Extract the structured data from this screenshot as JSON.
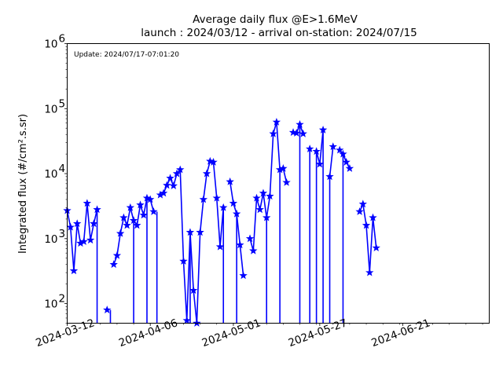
{
  "chart_data": {
    "type": "line",
    "title": "Average daily flux @E>1.6MeV",
    "subtitle": "launch : 2024/03/12 - arrival on-station: 2024/07/15",
    "annotation": "Update: 2024/07/17-07:01:20",
    "xlabel": "",
    "ylabel": "Integrated flux (#/cm².s.sr)",
    "y_scale": "log",
    "ylim": [
      50,
      1000000
    ],
    "xlim": [
      "2024-03-12",
      "2024-07-17"
    ],
    "x_tick_labels": [
      "2024-03-12",
      "2024-04-06",
      "2024-05-01",
      "2024-05-27",
      "2024-06-21"
    ],
    "y_tick_labels": [
      {
        "base": "10",
        "exp": "2",
        "value": 100
      },
      {
        "base": "10",
        "exp": "3",
        "value": 1000
      },
      {
        "base": "10",
        "exp": "4",
        "value": 10000
      },
      {
        "base": "10",
        "exp": "5",
        "value": 100000
      },
      {
        "base": "10",
        "exp": "6",
        "value": 1000000
      }
    ],
    "grid": false,
    "color": "#0000ff",
    "marker": "star",
    "series": [
      {
        "name": "",
        "x": [
          "2024-03-12",
          "2024-03-13",
          "2024-03-14",
          "2024-03-15",
          "2024-03-16",
          "2024-03-17",
          "2024-03-18",
          "2024-03-19",
          "2024-03-20",
          "2024-03-21",
          "2024-03-22",
          "2024-03-23",
          "2024-03-24",
          "2024-03-25",
          "2024-03-26",
          "2024-03-27",
          "2024-03-28",
          "2024-03-29",
          "2024-03-30",
          "2024-03-31",
          "2024-04-01",
          "2024-04-02",
          "2024-04-03",
          "2024-04-04",
          "2024-04-05",
          "2024-04-06",
          "2024-04-07",
          "2024-04-08",
          "2024-04-09",
          "2024-04-10",
          "2024-04-11",
          "2024-04-12",
          "2024-04-13",
          "2024-04-14",
          "2024-04-15",
          "2024-04-16",
          "2024-04-17",
          "2024-04-18",
          "2024-04-19",
          "2024-04-20",
          "2024-04-21",
          "2024-04-22",
          "2024-04-23",
          "2024-04-24",
          "2024-04-25",
          "2024-04-26",
          "2024-04-27",
          "2024-04-28",
          "2024-04-29",
          "2024-04-30",
          "2024-05-01",
          "2024-05-02",
          "2024-05-03",
          "2024-05-04",
          "2024-05-05",
          "2024-05-06",
          "2024-05-07",
          "2024-05-08",
          "2024-05-09",
          "2024-05-10",
          "2024-05-11",
          "2024-05-12",
          "2024-05-13",
          "2024-05-14",
          "2024-05-15",
          "2024-05-16",
          "2024-05-17",
          "2024-05-18",
          "2024-05-19",
          "2024-05-20",
          "2024-05-21",
          "2024-05-22",
          "2024-05-23",
          "2024-05-24",
          "2024-05-25",
          "2024-05-26",
          "2024-05-27",
          "2024-05-28",
          "2024-05-29",
          "2024-05-30",
          "2024-05-31",
          "2024-06-01",
          "2024-06-02",
          "2024-06-03",
          "2024-06-04",
          "2024-06-05",
          "2024-06-06",
          "2024-06-07",
          "2024-06-08",
          "2024-06-09",
          "2024-06-10",
          "2024-06-11",
          "2024-06-12",
          "2024-06-13",
          "2024-06-14",
          "2024-06-15"
        ],
        "y": [
          2700,
          1500,
          320,
          1700,
          850,
          900,
          3500,
          950,
          1700,
          2800,
          null,
          null,
          80,
          null,
          400,
          550,
          1200,
          2100,
          1600,
          3000,
          1900,
          1600,
          3300,
          2300,
          4200,
          4000,
          2600,
          null,
          4700,
          5000,
          6600,
          8500,
          6500,
          10000,
          11500,
          450,
          55,
          1250,
          160,
          50,
          1250,
          4000,
          10000,
          15500,
          15000,
          4200,
          750,
          3000,
          null,
          7500,
          3500,
          2400,
          800,
          270,
          null,
          1000,
          650,
          4200,
          2800,
          5000,
          2100,
          4500,
          41000,
          62000,
          11500,
          12000,
          7300,
          null,
          43000,
          42000,
          57000,
          41000,
          null,
          24000,
          null,
          22000,
          14000,
          47000,
          null,
          9000,
          26000,
          null,
          23000,
          20000,
          15000,
          12000,
          null,
          null,
          2600,
          3400,
          1600,
          300,
          2100,
          720,
          null,
          null
        ],
        "drop_to_axis": [
          "2024-03-21",
          "2024-03-25",
          "2024-04-01",
          "2024-04-05",
          "2024-04-08",
          "2024-04-18",
          "2024-04-28",
          "2024-05-02",
          "2024-05-11",
          "2024-05-15",
          "2024-05-21",
          "2024-05-24",
          "2024-05-26",
          "2024-05-28",
          "2024-05-30",
          "2024-06-03"
        ]
      }
    ]
  }
}
